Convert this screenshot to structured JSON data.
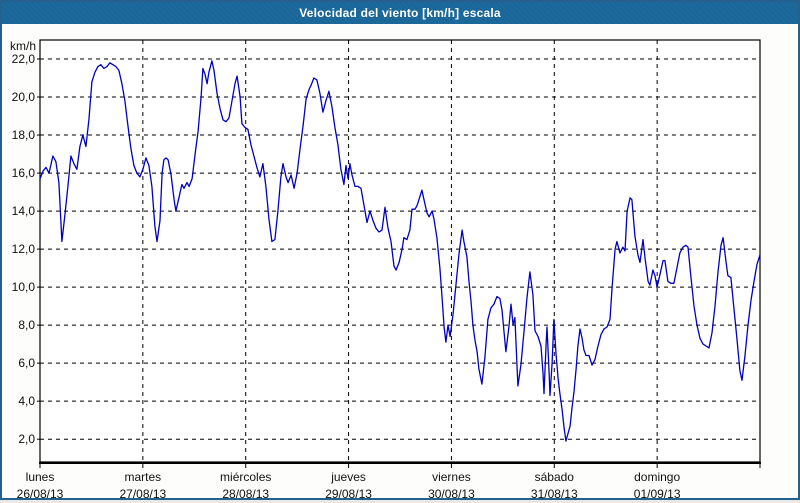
{
  "window": {
    "title": "Velocidad del viento [km/h] escala"
  },
  "colors": {
    "titlebar_bg": "#1c699c",
    "window_border": "#24618e",
    "content_bg": "#fdfefb",
    "plot_bg": "#ffffff",
    "axis": "#000000",
    "grid": "#000000",
    "line": "#0000bf",
    "label_text": "#111111"
  },
  "chart_data": {
    "type": "line",
    "title": "Velocidad del viento [km/h] escala",
    "ylabel": "km/h",
    "xlabel": "",
    "grid": "dashed",
    "legend": "none",
    "x_unit": "hours since lunes 26/08/13 00:00",
    "xlim_hours": [
      0,
      168
    ],
    "ylim": [
      0.8,
      23.0
    ],
    "y_ticks": [
      {
        "value": 22,
        "label": "22,0"
      },
      {
        "value": 20,
        "label": "20,0"
      },
      {
        "value": 18,
        "label": "18,0"
      },
      {
        "value": 16,
        "label": "16,0"
      },
      {
        "value": 14,
        "label": "14,0"
      },
      {
        "value": 12,
        "label": "12,0"
      },
      {
        "value": 10,
        "label": "10,0"
      },
      {
        "value": 8,
        "label": "8,0"
      },
      {
        "value": 6,
        "label": "6,0"
      },
      {
        "value": 4,
        "label": "4,0"
      },
      {
        "value": 2,
        "label": "2,0"
      }
    ],
    "x_ticks": [
      {
        "hours": 0,
        "day": "lunes",
        "date": "26/08/13"
      },
      {
        "hours": 24,
        "day": "martes",
        "date": "27/08/13"
      },
      {
        "hours": 48,
        "day": "miércoles",
        "date": "28/08/13"
      },
      {
        "hours": 72,
        "day": "jueves",
        "date": "29/08/13"
      },
      {
        "hours": 96,
        "day": "viernes",
        "date": "30/08/13"
      },
      {
        "hours": 120,
        "day": "sábado",
        "date": "31/08/13"
      },
      {
        "hours": 144,
        "day": "domingo",
        "date": "01/09/13"
      },
      {
        "hours": 168,
        "day": "",
        "date": ""
      }
    ],
    "series": [
      {
        "name": "Velocidad del viento",
        "color": "#0000bf",
        "points": [
          [
            0,
            15.7
          ],
          [
            0.7,
            16.1
          ],
          [
            1.4,
            16.3
          ],
          [
            2.1,
            16
          ],
          [
            3,
            16.9
          ],
          [
            3.7,
            16.6
          ],
          [
            4.4,
            15.5
          ],
          [
            5.1,
            12.4
          ],
          [
            5.8,
            13.8
          ],
          [
            6.5,
            15.3
          ],
          [
            7.2,
            16.9
          ],
          [
            7.9,
            16.5
          ],
          [
            8.6,
            16.2
          ],
          [
            9.3,
            17.4
          ],
          [
            10,
            18
          ],
          [
            10.7,
            17.4
          ],
          [
            11.4,
            18.8
          ],
          [
            12.1,
            20.8
          ],
          [
            12.8,
            21.3
          ],
          [
            13.5,
            21.6
          ],
          [
            14.2,
            21.7
          ],
          [
            14.9,
            21.5
          ],
          [
            15.6,
            21.6
          ],
          [
            16.3,
            21.8
          ],
          [
            17,
            21.7
          ],
          [
            17.7,
            21.6
          ],
          [
            18.4,
            21.4
          ],
          [
            19.1,
            20.7
          ],
          [
            19.8,
            19.8
          ],
          [
            20.5,
            18.5
          ],
          [
            21.2,
            17.3
          ],
          [
            21.9,
            16.4
          ],
          [
            22.6,
            16
          ],
          [
            23.3,
            15.8
          ],
          [
            24,
            16.2
          ],
          [
            24.7,
            16.8
          ],
          [
            25.4,
            16.4
          ],
          [
            26.1,
            15.3
          ],
          [
            26.8,
            13.2
          ],
          [
            27.3,
            12.4
          ],
          [
            28,
            13.5
          ],
          [
            28.5,
            16
          ],
          [
            28.9,
            16.7
          ],
          [
            29.4,
            16.8
          ],
          [
            29.9,
            16.7
          ],
          [
            30.6,
            15.9
          ],
          [
            31.3,
            14.6
          ],
          [
            31.7,
            14
          ],
          [
            32.4,
            14.7
          ],
          [
            33.1,
            15.4
          ],
          [
            33.6,
            15.2
          ],
          [
            34.3,
            15.5
          ],
          [
            34.8,
            15.3
          ],
          [
            35.5,
            15.7
          ],
          [
            36.2,
            17
          ],
          [
            36.9,
            18.2
          ],
          [
            37.6,
            20
          ],
          [
            38,
            21.5
          ],
          [
            38.5,
            21.2
          ],
          [
            39,
            20.7
          ],
          [
            39.4,
            21.3
          ],
          [
            40.1,
            21.9
          ],
          [
            40.6,
            21.4
          ],
          [
            41.3,
            20.2
          ],
          [
            42,
            19.4
          ],
          [
            42.7,
            18.8
          ],
          [
            43.4,
            18.7
          ],
          [
            44.1,
            18.9
          ],
          [
            44.8,
            19.8
          ],
          [
            45.5,
            20.7
          ],
          [
            46,
            21.1
          ],
          [
            46.7,
            20
          ],
          [
            47.1,
            18.6
          ],
          [
            47.8,
            18.4
          ],
          [
            48.5,
            18.3
          ],
          [
            49.2,
            17.5
          ],
          [
            49.9,
            16.9
          ],
          [
            50.6,
            16.3
          ],
          [
            51.3,
            15.8
          ],
          [
            52,
            16.5
          ],
          [
            52.7,
            15.3
          ],
          [
            53.4,
            13.6
          ],
          [
            54.1,
            12.4
          ],
          [
            54.8,
            12.5
          ],
          [
            55.5,
            14
          ],
          [
            56.2,
            15.8
          ],
          [
            56.7,
            16.5
          ],
          [
            57.4,
            15.8
          ],
          [
            57.9,
            15.5
          ],
          [
            58.6,
            15.9
          ],
          [
            59.3,
            15.2
          ],
          [
            60,
            16
          ],
          [
            60.7,
            17.3
          ],
          [
            61.4,
            18.5
          ],
          [
            62.1,
            19.9
          ],
          [
            62.8,
            20.4
          ],
          [
            63.2,
            20.6
          ],
          [
            63.9,
            21
          ],
          [
            64.6,
            20.9
          ],
          [
            65.3,
            20.2
          ],
          [
            66,
            19.2
          ],
          [
            66.7,
            19.8
          ],
          [
            67.4,
            20.3
          ],
          [
            68.1,
            19.5
          ],
          [
            68.8,
            18.4
          ],
          [
            69.5,
            17.5
          ],
          [
            70.2,
            16.2
          ],
          [
            70.9,
            15.4
          ],
          [
            71.4,
            16.4
          ],
          [
            71.9,
            15.7
          ],
          [
            72.3,
            16.5
          ],
          [
            72.8,
            15.9
          ],
          [
            73.5,
            15.3
          ],
          [
            74.2,
            15.3
          ],
          [
            74.9,
            15.2
          ],
          [
            75.6,
            14.3
          ],
          [
            76.3,
            13.4
          ],
          [
            77,
            14
          ],
          [
            77.7,
            13.5
          ],
          [
            78.4,
            13.1
          ],
          [
            79.1,
            12.9
          ],
          [
            79.8,
            13
          ],
          [
            80.5,
            14.2
          ],
          [
            81.2,
            13.1
          ],
          [
            81.9,
            12.4
          ],
          [
            82.6,
            11.1
          ],
          [
            83.1,
            10.9
          ],
          [
            83.8,
            11.3
          ],
          [
            84.5,
            12
          ],
          [
            84.9,
            12.6
          ],
          [
            85.6,
            12.5
          ],
          [
            86.3,
            13
          ],
          [
            86.8,
            14.1
          ],
          [
            87.5,
            14.1
          ],
          [
            88,
            14.3
          ],
          [
            88.7,
            14.8
          ],
          [
            89.1,
            15.1
          ],
          [
            89.6,
            14.6
          ],
          [
            90.3,
            13.9
          ],
          [
            90.8,
            13.7
          ],
          [
            91.5,
            14
          ],
          [
            91.9,
            13.6
          ],
          [
            92.6,
            12.6
          ],
          [
            93.3,
            11
          ],
          [
            93.8,
            9.5
          ],
          [
            94.3,
            7.9
          ],
          [
            94.7,
            7.1
          ],
          [
            95.2,
            8
          ],
          [
            95.7,
            7.4
          ],
          [
            96.4,
            8.6
          ],
          [
            97.1,
            10.2
          ],
          [
            97.8,
            11.8
          ],
          [
            98.5,
            13
          ],
          [
            98.9,
            12.4
          ],
          [
            99.6,
            11.6
          ],
          [
            100.1,
            10.3
          ],
          [
            100.6,
            9.2
          ],
          [
            101,
            8
          ],
          [
            101.5,
            7.2
          ],
          [
            102,
            6.6
          ],
          [
            102.4,
            5.7
          ],
          [
            103.1,
            4.9
          ],
          [
            103.8,
            6.3
          ],
          [
            104.5,
            8.3
          ],
          [
            105.2,
            8.9
          ],
          [
            105.9,
            9.1
          ],
          [
            106.6,
            9.5
          ],
          [
            107.3,
            9.4
          ],
          [
            107.8,
            8.8
          ],
          [
            108.3,
            7.6
          ],
          [
            108.7,
            6.6
          ],
          [
            109.4,
            7.9
          ],
          [
            109.9,
            9.1
          ],
          [
            110.4,
            8
          ],
          [
            110.8,
            8.4
          ],
          [
            111.5,
            4.8
          ],
          [
            112.2,
            5.9
          ],
          [
            112.9,
            7.6
          ],
          [
            113.6,
            9.4
          ],
          [
            114.3,
            10.8
          ],
          [
            115,
            9.6
          ],
          [
            115.5,
            7.7
          ],
          [
            116.2,
            7.4
          ],
          [
            116.9,
            6.9
          ],
          [
            117.4,
            5.4
          ],
          [
            117.6,
            4.4
          ],
          [
            118.1,
            7
          ],
          [
            118.3,
            7.9
          ],
          [
            118.8,
            5.5
          ],
          [
            119,
            4.3
          ],
          [
            119.5,
            6
          ],
          [
            119.9,
            8.3
          ],
          [
            120.4,
            6.5
          ],
          [
            120.9,
            5.2
          ],
          [
            121.3,
            4.4
          ],
          [
            121.8,
            3.6
          ],
          [
            122.3,
            2.6
          ],
          [
            122.7,
            1.9
          ],
          [
            123.2,
            2.3
          ],
          [
            123.7,
            2.7
          ],
          [
            124.1,
            3.6
          ],
          [
            124.6,
            4.5
          ],
          [
            125.1,
            5.7
          ],
          [
            125.5,
            6.9
          ],
          [
            126,
            7.8
          ],
          [
            126.5,
            7.3
          ],
          [
            126.9,
            6.7
          ],
          [
            127.4,
            6.4
          ],
          [
            128.1,
            6.4
          ],
          [
            128.8,
            5.9
          ],
          [
            129.5,
            6.2
          ],
          [
            130.2,
            6.9
          ],
          [
            130.9,
            7.5
          ],
          [
            131.6,
            7.8
          ],
          [
            132.3,
            7.9
          ],
          [
            133,
            8.3
          ],
          [
            133.5,
            10
          ],
          [
            134.2,
            12
          ],
          [
            134.6,
            12.4
          ],
          [
            135.3,
            11.8
          ],
          [
            136,
            12.1
          ],
          [
            136.5,
            11.9
          ],
          [
            137,
            14
          ],
          [
            137.7,
            14.7
          ],
          [
            138.1,
            14.6
          ],
          [
            138.8,
            12.7
          ],
          [
            139.5,
            11.7
          ],
          [
            140,
            11.3
          ],
          [
            140.7,
            12.5
          ],
          [
            141.2,
            11.5
          ],
          [
            141.9,
            10.3
          ],
          [
            142.3,
            10.1
          ],
          [
            143,
            10.9
          ],
          [
            143.5,
            10.6
          ],
          [
            144,
            10
          ],
          [
            144.7,
            10.7
          ],
          [
            145.4,
            11.4
          ],
          [
            145.8,
            11.4
          ],
          [
            146.5,
            10.3
          ],
          [
            147.2,
            10.2
          ],
          [
            147.9,
            10.2
          ],
          [
            148.6,
            11
          ],
          [
            149.3,
            11.8
          ],
          [
            150,
            12.1
          ],
          [
            150.7,
            12.2
          ],
          [
            151.2,
            12.1
          ],
          [
            151.9,
            10.5
          ],
          [
            152.6,
            9
          ],
          [
            153.3,
            8
          ],
          [
            154,
            7.3
          ],
          [
            154.7,
            7
          ],
          [
            155.4,
            6.9
          ],
          [
            156.1,
            6.8
          ],
          [
            156.8,
            7.6
          ],
          [
            157.5,
            9
          ],
          [
            158.2,
            10.8
          ],
          [
            158.9,
            12.2
          ],
          [
            159.4,
            12.6
          ],
          [
            160.1,
            11.3
          ],
          [
            160.5,
            10.6
          ],
          [
            161.2,
            10.5
          ],
          [
            161.9,
            8.9
          ],
          [
            162.6,
            7.3
          ],
          [
            163.3,
            5.6
          ],
          [
            163.8,
            5.1
          ],
          [
            164.5,
            6.4
          ],
          [
            165.2,
            8
          ],
          [
            165.9,
            9.3
          ],
          [
            166.6,
            10.3
          ],
          [
            167.3,
            11.2
          ],
          [
            168,
            11.7
          ]
        ]
      }
    ]
  }
}
